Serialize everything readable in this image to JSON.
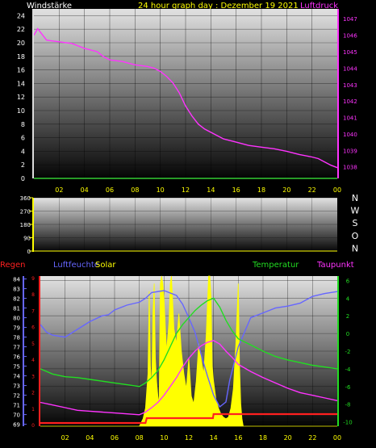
{
  "header": {
    "title": "24 hour graph day : Dezember 19 2021",
    "left_label": "Windstärke",
    "right_label": "Luftdruck"
  },
  "colors": {
    "background": "#000000",
    "title": "#ffff00",
    "wind": "#dddddd",
    "pressure": "#ff33ff",
    "direction": "#ffffff",
    "rain": "#ff2020",
    "humidity": "#6666ff",
    "solar": "#ffff00",
    "temperature": "#22dd22",
    "dewpoint": "#ff33ff",
    "grid": "#000000"
  },
  "chart_data": [
    {
      "id": "wind_pressure",
      "type": "line",
      "x_tick_labels": [
        "02",
        "04",
        "06",
        "08",
        "10",
        "12",
        "14",
        "16",
        "18",
        "20",
        "22",
        "00"
      ],
      "xlim": [
        0,
        24
      ],
      "ylabel_left": "Windstärke",
      "ylim_left": [
        0,
        25
      ],
      "yticks_left": [
        "0",
        "2",
        "4",
        "6",
        "8",
        "10",
        "12",
        "14",
        "16",
        "18",
        "20",
        "22",
        "24"
      ],
      "ylabel_right": "Luftdruck",
      "ylim_right": [
        1037.3,
        1047.6
      ],
      "yticks_right": [
        "1038",
        "1039",
        "1040",
        "1041",
        "1042",
        "1043",
        "1044",
        "1045",
        "1046",
        "1047"
      ],
      "series": [
        {
          "name": "Luftdruck",
          "axis": "right",
          "x": [
            0,
            0.3,
            0.6,
            1,
            1.5,
            2,
            3,
            4,
            5,
            5.5,
            6,
            6.5,
            7,
            7.5,
            8,
            8.5,
            9,
            9.5,
            10,
            10.5,
            11,
            11.5,
            12,
            12.5,
            13,
            13.5,
            14,
            14.5,
            15,
            16,
            17,
            18,
            19,
            20,
            21,
            22,
            22.5,
            23,
            23.5,
            24
          ],
          "y": [
            1046.0,
            1046.4,
            1046.1,
            1045.7,
            1045.65,
            1045.6,
            1045.5,
            1045.2,
            1045.0,
            1044.7,
            1044.5,
            1044.45,
            1044.4,
            1044.3,
            1044.2,
            1044.15,
            1044.1,
            1044.0,
            1043.8,
            1043.5,
            1043.1,
            1042.5,
            1041.7,
            1041.1,
            1040.6,
            1040.3,
            1040.1,
            1039.9,
            1039.7,
            1039.5,
            1039.3,
            1039.2,
            1039.1,
            1038.95,
            1038.75,
            1038.6,
            1038.5,
            1038.3,
            1038.1,
            1037.95
          ]
        },
        {
          "name": "Windstärke",
          "axis": "left",
          "x": [
            0,
            24
          ],
          "y": [
            0,
            0
          ]
        }
      ]
    },
    {
      "id": "wind_direction",
      "type": "line",
      "x_tick_labels": [],
      "ylim_left": [
        0,
        360
      ],
      "yticks_left": [
        "0",
        "90",
        "180",
        "270",
        "360"
      ],
      "compass_labels": [
        "N",
        "W",
        "S",
        "O",
        "N"
      ],
      "series": []
    },
    {
      "id": "weather",
      "type": "line",
      "x_tick_labels": [
        "02",
        "04",
        "06",
        "08",
        "10",
        "12",
        "14",
        "16",
        "18",
        "20",
        "22",
        "00"
      ],
      "xlim": [
        0,
        24
      ],
      "labels": {
        "rain": "Regen",
        "humidity": "Luftfeuchte",
        "solar": "Solar",
        "temperature": "Temperatur",
        "dewpoint": "Taupunkt"
      },
      "humidity_ylim": [
        68.8,
        84.3
      ],
      "humidity_yticks": [
        "69",
        "70",
        "71",
        "72",
        "73",
        "74",
        "75",
        "76",
        "77",
        "78",
        "79",
        "80",
        "81",
        "82",
        "83",
        "84"
      ],
      "rain_yticks": [
        "0",
        "1",
        "2",
        "3",
        "4",
        "5",
        "6",
        "7",
        "8",
        "9"
      ],
      "temperature_ylim": [
        -10.5,
        6.5
      ],
      "temperature_yticks": [
        "-10",
        "-8",
        "-6",
        "-4",
        "-2",
        "0",
        "2",
        "4",
        "6"
      ],
      "series": [
        {
          "name": "Luftfeuchte",
          "axis": "humidity",
          "x": [
            0,
            0.5,
            1,
            1.5,
            2,
            3,
            4,
            5,
            5.5,
            6,
            7,
            8,
            8.5,
            9,
            10,
            11,
            11.5,
            12,
            12.5,
            13,
            13.5,
            14,
            14.5,
            15,
            15.3,
            15.7,
            16,
            16.5,
            17,
            18,
            19,
            20,
            21,
            22,
            23,
            24
          ],
          "y": [
            79.3,
            78.5,
            78.2,
            78.1,
            78.0,
            78.8,
            79.6,
            80.2,
            80.3,
            80.8,
            81.3,
            81.6,
            82.0,
            82.6,
            82.8,
            82.3,
            81.4,
            80.0,
            78.5,
            76.2,
            74.0,
            72.0,
            70.8,
            71.3,
            73.5,
            75.5,
            77.0,
            78.5,
            80.0,
            80.5,
            81.0,
            81.2,
            81.5,
            82.2,
            82.5,
            82.7
          ]
        },
        {
          "name": "Temperatur",
          "axis": "temperature",
          "x": [
            0,
            1,
            2,
            3,
            4,
            5,
            6,
            7,
            8,
            8.5,
            9,
            9.5,
            10,
            10.5,
            11,
            11.5,
            12,
            12.5,
            13,
            13.5,
            14,
            14.5,
            15,
            15.5,
            16,
            17,
            18,
            19,
            20,
            21,
            22,
            23,
            24
          ],
          "y": [
            -4.0,
            -4.6,
            -4.9,
            -5.0,
            -5.2,
            -5.4,
            -5.6,
            -5.8,
            -6.0,
            -5.6,
            -5.0,
            -4.2,
            -3.0,
            -1.5,
            0.0,
            1.0,
            1.8,
            2.6,
            3.2,
            3.7,
            4.0,
            3.0,
            1.5,
            0.3,
            -0.6,
            -1.3,
            -2.0,
            -2.6,
            -3.0,
            -3.3,
            -3.6,
            -3.8,
            -4.0
          ]
        },
        {
          "name": "Taupunkt",
          "axis": "temperature",
          "x": [
            0,
            1,
            2,
            3,
            4,
            5,
            6,
            7,
            8,
            8.5,
            9,
            9.5,
            10,
            10.5,
            11,
            11.5,
            12,
            12.5,
            13,
            13.5,
            14,
            14.5,
            15,
            15.5,
            16,
            17,
            18,
            19,
            20,
            21,
            22,
            23,
            24
          ],
          "y": [
            -7.8,
            -8.1,
            -8.4,
            -8.7,
            -8.8,
            -8.9,
            -9.0,
            -9.1,
            -9.2,
            -8.9,
            -8.4,
            -7.8,
            -7.0,
            -6.0,
            -5.0,
            -3.8,
            -2.8,
            -2.0,
            -1.4,
            -1.0,
            -0.8,
            -1.2,
            -2.0,
            -2.7,
            -3.5,
            -4.3,
            -5.0,
            -5.6,
            -6.2,
            -6.7,
            -7.0,
            -7.3,
            -7.6
          ]
        },
        {
          "name": "Solar",
          "axis": "solar",
          "fill": true,
          "x": [
            0,
            8.0,
            8.3,
            8.5,
            8.7,
            8.8,
            8.9,
            9.0,
            9.1,
            9.2,
            9.3,
            9.4,
            9.5,
            9.6,
            9.7,
            9.8,
            9.9,
            10.0,
            10.2,
            10.4,
            10.5,
            10.6,
            10.8,
            11.0,
            11.2,
            11.4,
            11.6,
            11.8,
            12.0,
            12.2,
            12.4,
            12.6,
            12.8,
            13.0,
            13.2,
            13.4,
            13.5,
            13.6,
            13.7,
            13.8,
            13.9,
            14.0,
            14.2,
            14.4,
            14.6,
            14.8,
            15.0,
            15.2,
            15.4,
            15.6,
            15.8,
            16.0,
            16.1,
            16.2,
            16.3,
            16.4,
            24
          ],
          "y": [
            0,
            0,
            0.05,
            0.12,
            0.35,
            0.9,
            0.4,
            0.25,
            0.75,
            0.95,
            0.45,
            0.3,
            0.2,
            0.15,
            0.95,
            1.0,
            0.95,
            0.85,
            0.5,
            0.7,
            0.95,
            1.0,
            0.65,
            0.55,
            0.75,
            0.5,
            0.35,
            0.25,
            0.45,
            0.2,
            0.15,
            0.3,
            0.55,
            0.45,
            0.35,
            0.6,
            0.8,
            1.0,
            1.0,
            0.85,
            0.4,
            0.3,
            0.18,
            0.12,
            0.08,
            0.06,
            0.05,
            0.06,
            0.12,
            0.25,
            0.55,
            0.95,
            0.4,
            0.15,
            0.05,
            0,
            0
          ]
        },
        {
          "name": "Regen",
          "axis": "rain",
          "step": true,
          "x": [
            0,
            8.5,
            8.6,
            13.95,
            14.0,
            24
          ],
          "y": [
            0,
            0,
            0.3,
            0.3,
            0.55,
            0.55
          ]
        }
      ]
    }
  ]
}
